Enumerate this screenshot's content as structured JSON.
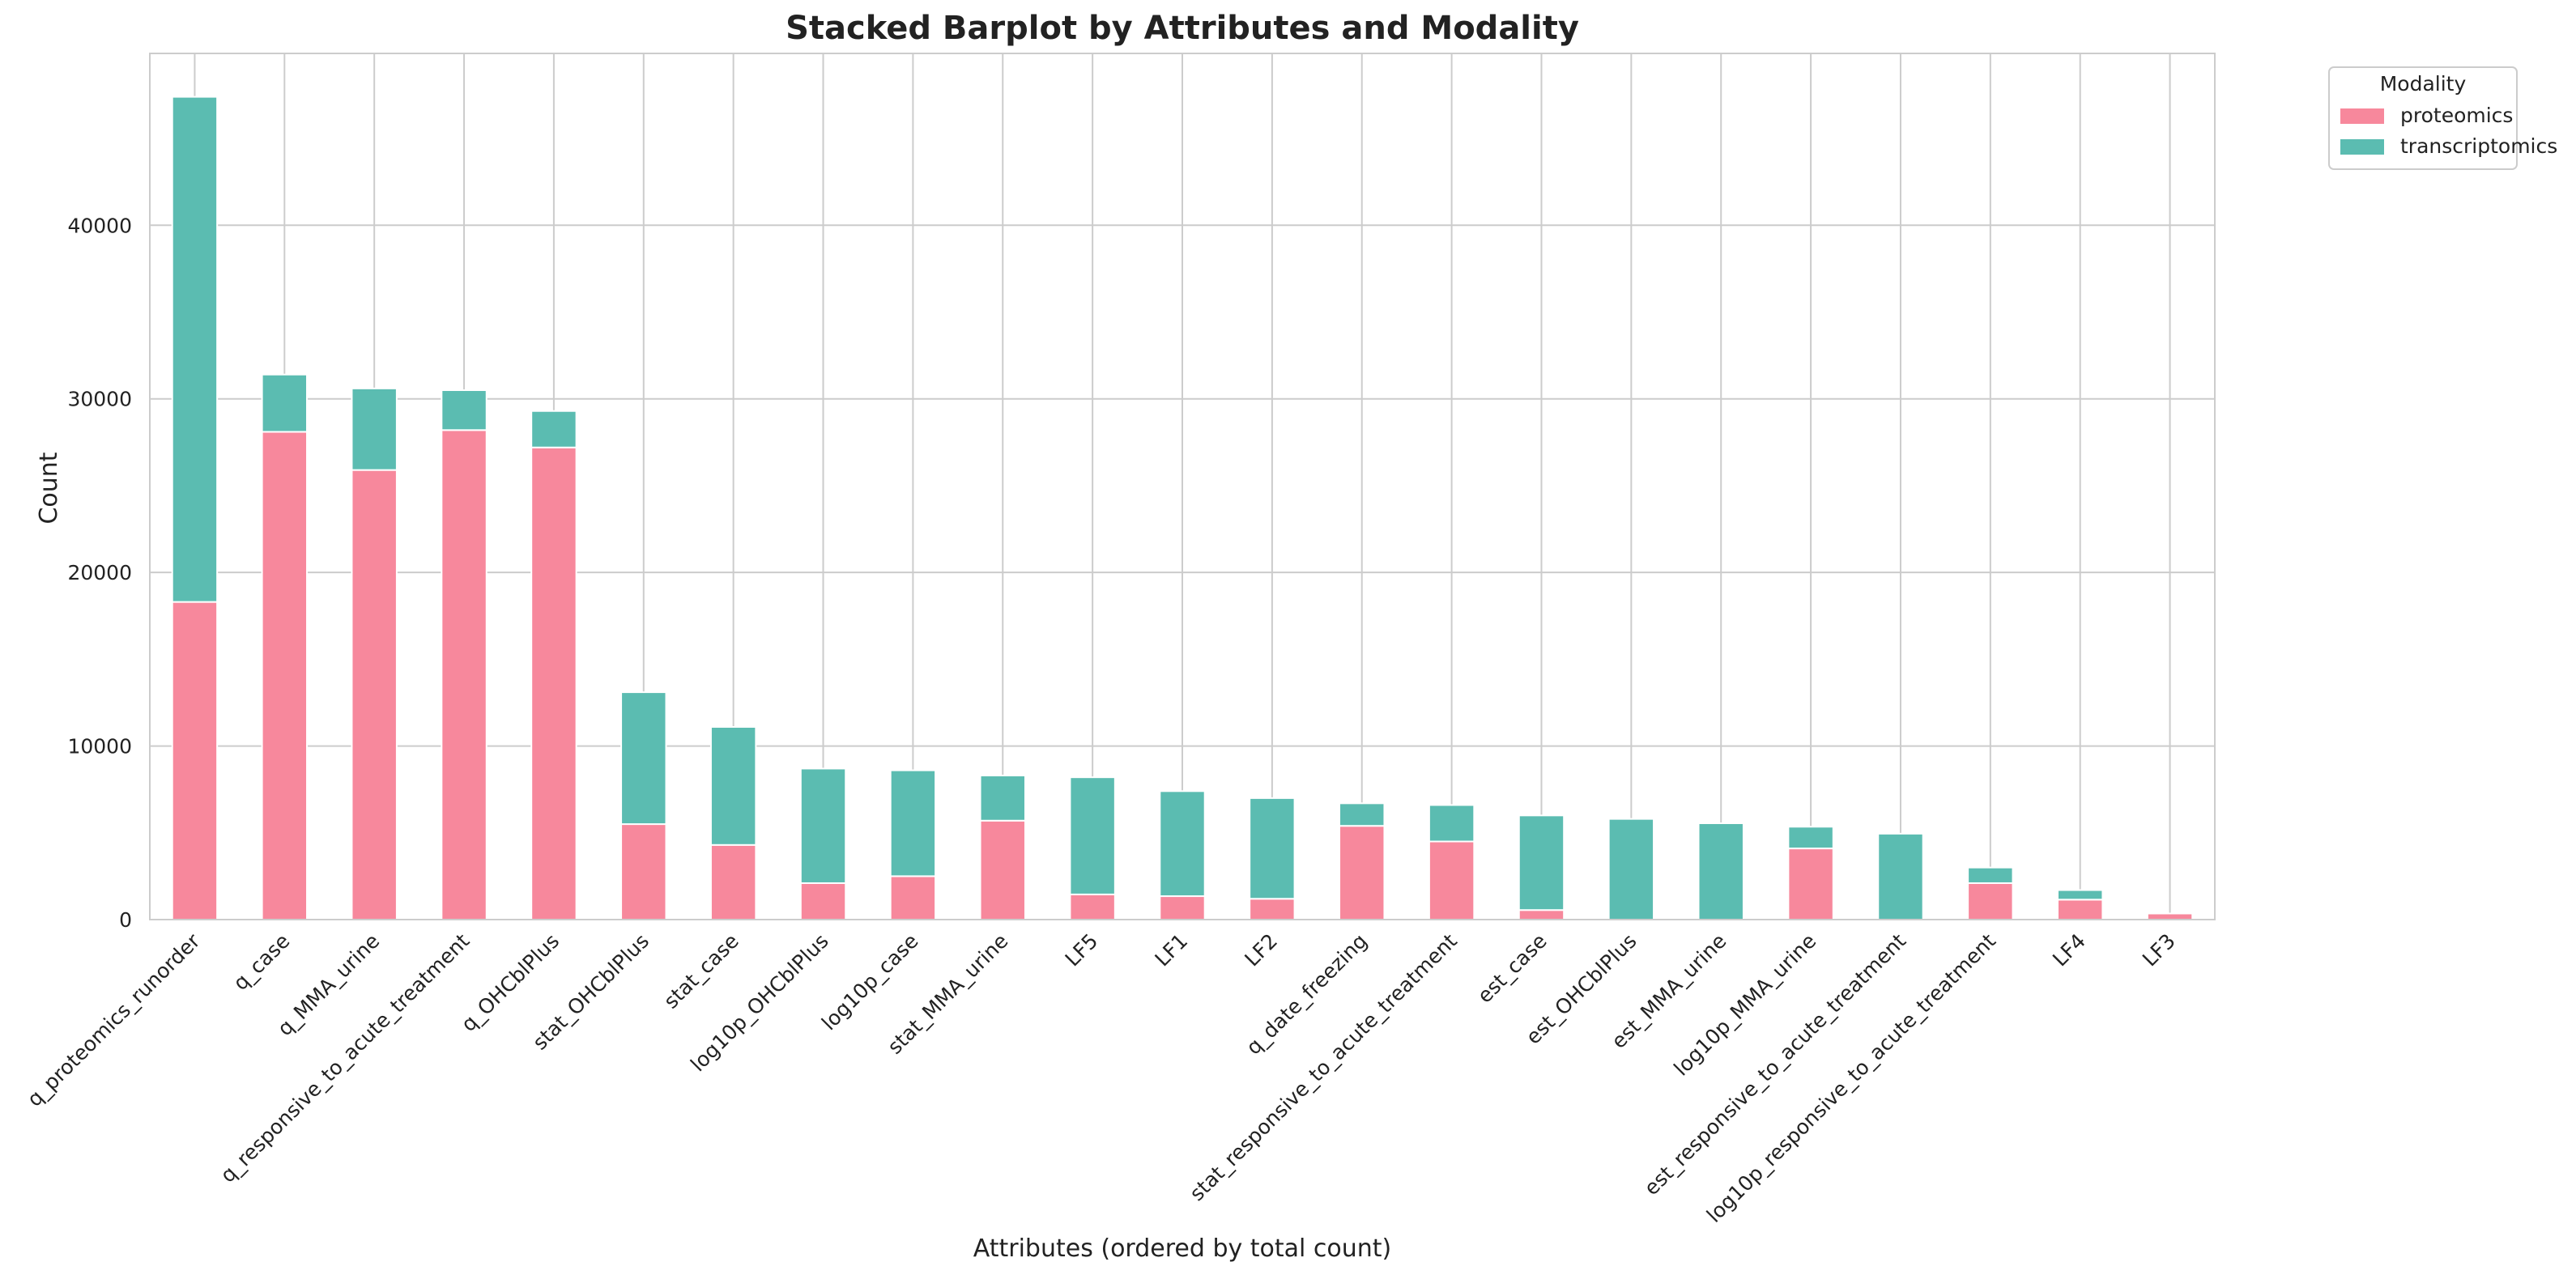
{
  "chart_data": {
    "type": "bar",
    "stacked": true,
    "title": "Stacked Barplot by Attributes and Modality",
    "xlabel": "Attributes (ordered by total count)",
    "ylabel": "Count",
    "ylim": [
      0,
      49900
    ],
    "yticks": [
      0,
      10000,
      20000,
      30000,
      40000
    ],
    "ytick_labels": [
      "0",
      "10000",
      "20000",
      "30000",
      "40000"
    ],
    "grid": true,
    "legend": {
      "title": "Modality",
      "placement": "outside-top-right"
    },
    "categories": [
      "q_proteomics_runorder",
      "q_case",
      "q_MMA_urine",
      "q_responsive_to_acute_treatment",
      "q_OHCblPlus",
      "stat_OHCblPlus",
      "stat_case",
      "log10p_OHCblPlus",
      "log10p_case",
      "stat_MMA_urine",
      "LF5",
      "LF1",
      "LF2",
      "q_date_freezing",
      "stat_responsive_to_acute_treatment",
      "est_case",
      "est_OHCblPlus",
      "est_MMA_urine",
      "log10p_MMA_urine",
      "est_responsive_to_acute_treatment",
      "log10p_responsive_to_acute_treatment",
      "LF4",
      "LF3"
    ],
    "series": [
      {
        "name": "proteomics",
        "color": "#f7889c",
        "values": [
          18300,
          28100,
          25900,
          28200,
          27200,
          5500,
          4300,
          2100,
          2500,
          5700,
          1450,
          1350,
          1200,
          5400,
          4500,
          550,
          0,
          0,
          4100,
          0,
          2100,
          1150,
          350
        ]
      },
      {
        "name": "transcriptomics",
        "color": "#5bbcb1",
        "values": [
          29100,
          3300,
          4700,
          2300,
          2100,
          7600,
          6800,
          6600,
          6100,
          2600,
          6750,
          6050,
          5800,
          1300,
          2100,
          5450,
          5800,
          5550,
          1250,
          4950,
          900,
          550,
          0
        ]
      }
    ]
  }
}
